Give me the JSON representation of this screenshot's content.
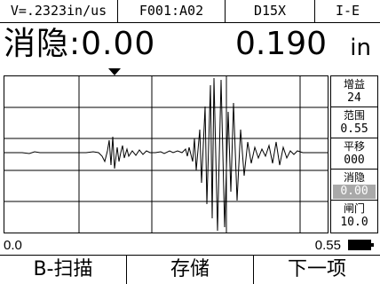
{
  "top": {
    "velocity": "V=.2323in/us",
    "file": "F001:A02",
    "probe": "D15X",
    "mode": "I-E"
  },
  "readout": {
    "label": "消隐:0.00",
    "value": "0.190",
    "unit": "in"
  },
  "side_menu": [
    {
      "label": "增益",
      "value": "24",
      "active": false
    },
    {
      "label": "范围",
      "value": "0.55",
      "active": false
    },
    {
      "label": "平移",
      "value": "000",
      "active": false
    },
    {
      "label": "消隐",
      "value": "0.00",
      "active": true
    },
    {
      "label": "闸门",
      "value": "10.0",
      "active": false
    }
  ],
  "scale": {
    "start": "0.0",
    "end": "0.55"
  },
  "softkeys": [
    "B-扫描",
    "存储",
    "下一项"
  ]
}
